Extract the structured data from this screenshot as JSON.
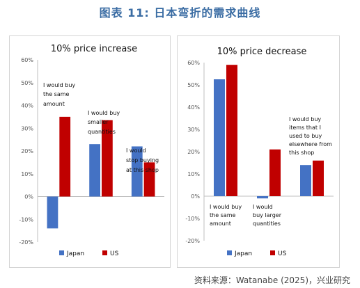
{
  "figure": {
    "title": "图表 11: 日本弯折的需求曲线",
    "source": "资料来源：Watanabe (2025)，兴业研究"
  },
  "colors": {
    "title": "#3a6ca3",
    "japan": "#4472c4",
    "us": "#c00000"
  },
  "chart_data": [
    {
      "type": "bar",
      "title": "10% price increase",
      "categories": [
        "I would buy the same amount",
        "I would buy smaller quantities",
        "I would stop buying at this shop"
      ],
      "category_labels": [
        [
          "I would buy",
          "the same",
          "amount"
        ],
        [
          "I would buy",
          "smaller",
          "quantities"
        ],
        [
          "I would",
          "stop buying",
          "at this shop"
        ]
      ],
      "series": [
        {
          "name": "Japan",
          "values": [
            -14,
            23,
            22
          ]
        },
        {
          "name": "US",
          "values": [
            35,
            33.5,
            15
          ]
        }
      ],
      "ylim": [
        -20,
        60
      ],
      "yticks": [
        "-20%",
        "-10%",
        "0%",
        "10%",
        "20%",
        "30%",
        "40%",
        "50%",
        "60%"
      ],
      "legend": "bottom"
    },
    {
      "type": "bar",
      "title": "10% price decrease",
      "categories": [
        "I would buy the same amount",
        "I would buy larger quantities",
        "I would buy items that I used to buy elsewhere from this shop"
      ],
      "category_labels": [
        [
          "I would buy",
          "the same",
          "amount"
        ],
        [
          "I would",
          "buy larger",
          "quantities"
        ],
        [
          "I would buy",
          "items that I",
          "used to buy",
          "elsewhere from",
          "this shop"
        ]
      ],
      "series": [
        {
          "name": "Japan",
          "values": [
            52.5,
            -1,
            14
          ]
        },
        {
          "name": "US",
          "values": [
            59,
            21,
            16
          ]
        }
      ],
      "ylim": [
        -20,
        60
      ],
      "yticks": [
        "-20%",
        "-10%",
        "0%",
        "10%",
        "20%",
        "30%",
        "40%",
        "50%",
        "60%"
      ],
      "legend": "bottom"
    }
  ]
}
